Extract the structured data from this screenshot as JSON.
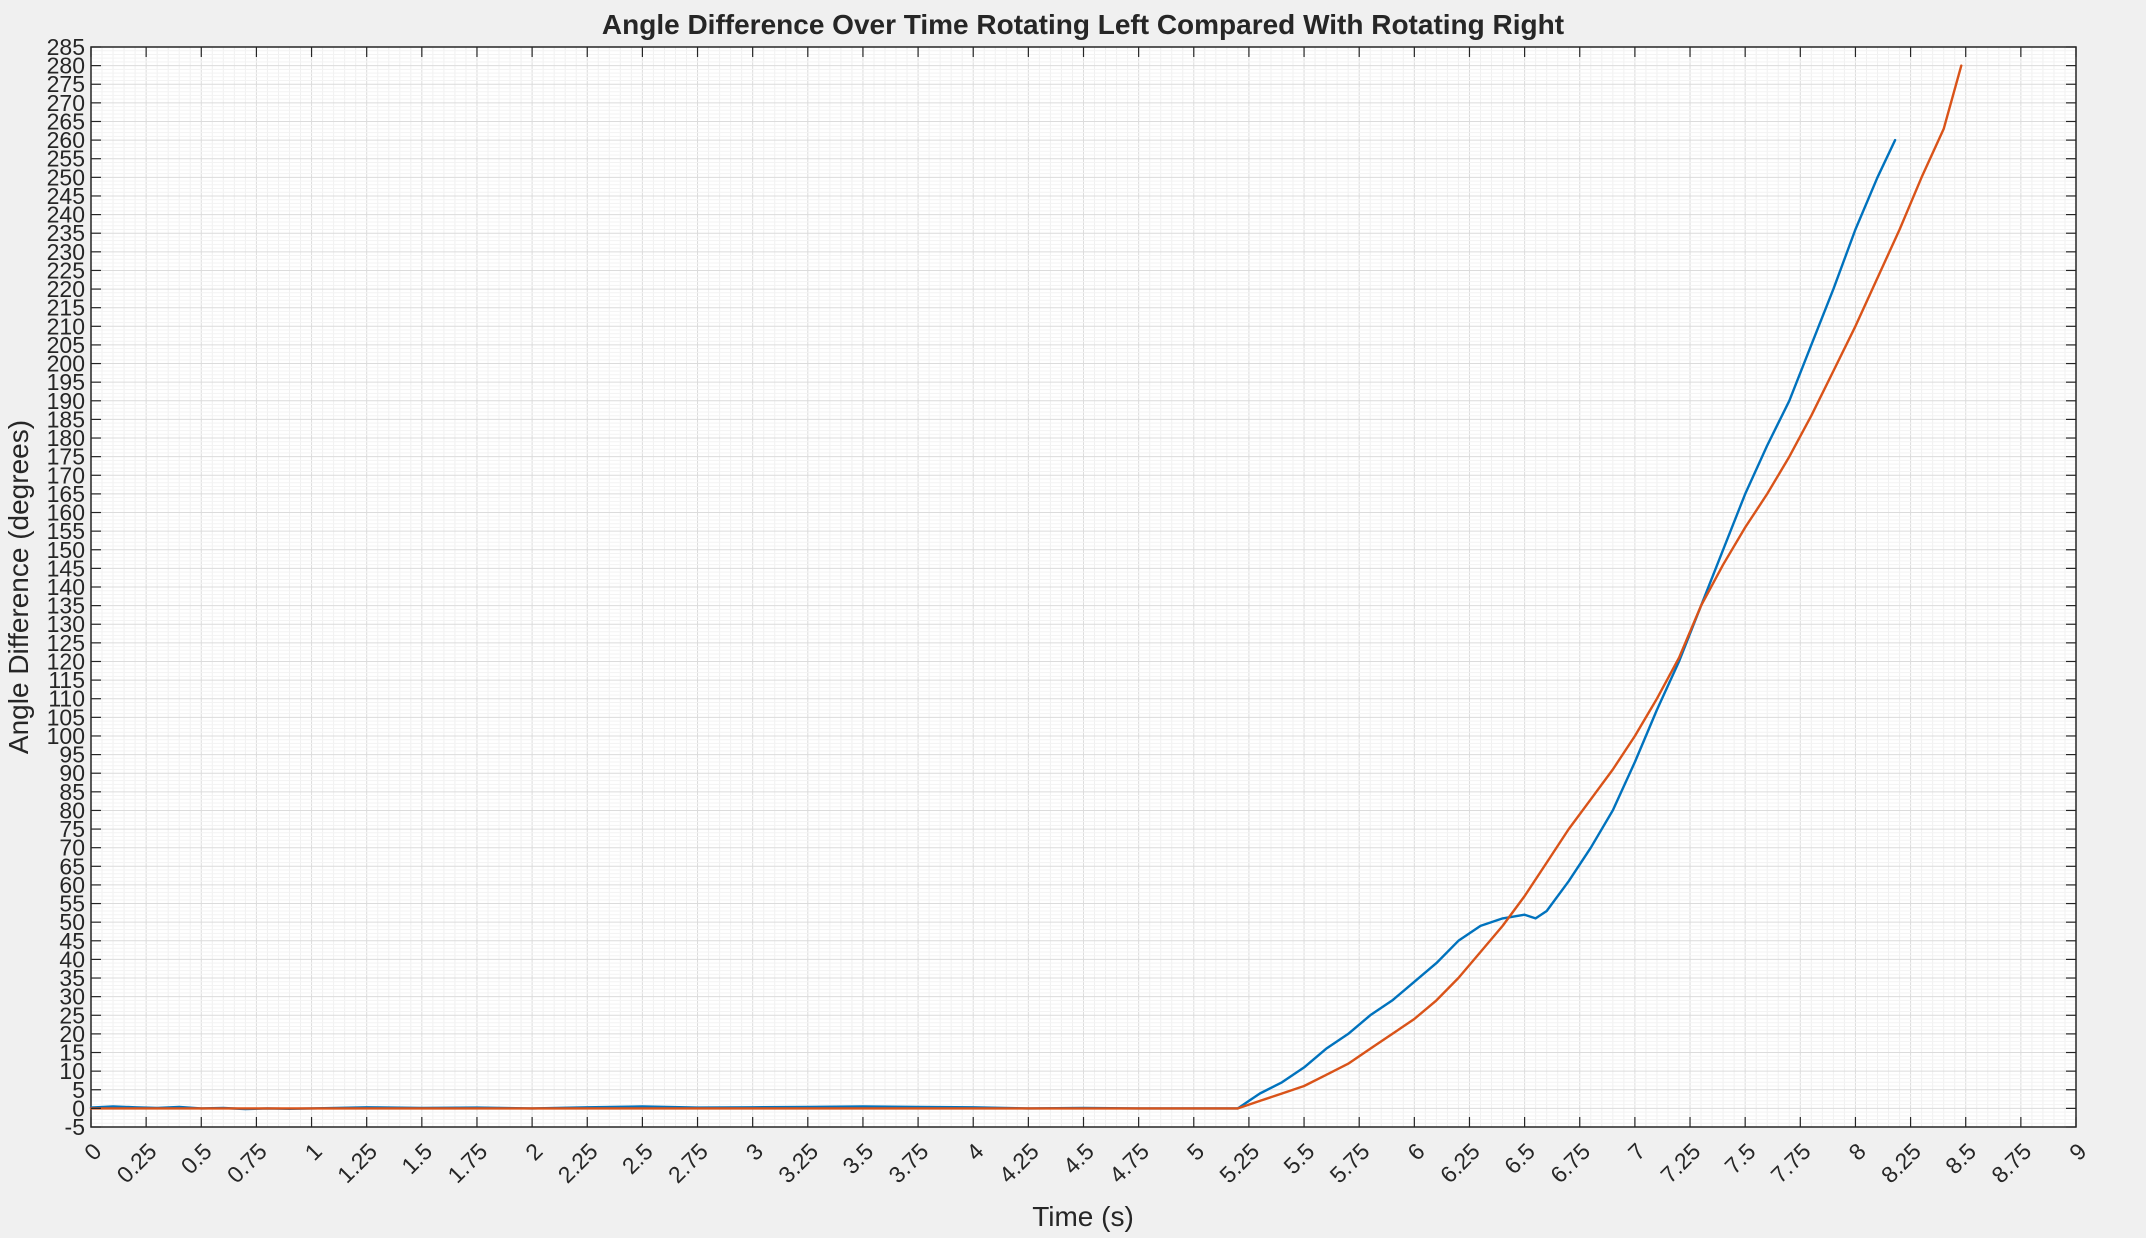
{
  "chart_data": {
    "type": "line",
    "title": "Angle Difference Over Time Rotating Left Compared With Rotating Right",
    "xlabel": "Time (s)",
    "ylabel": "Angle Difference (degrees)",
    "xlim": [
      0,
      9
    ],
    "ylim": [
      -5,
      285
    ],
    "x_ticks": [
      "0",
      "0.25",
      "0.5",
      "0.75",
      "1",
      "1.25",
      "1.5",
      "1.75",
      "2",
      "2.25",
      "2.5",
      "2.75",
      "3",
      "3.25",
      "3.5",
      "3.75",
      "4",
      "4.25",
      "4.5",
      "4.75",
      "5",
      "5.25",
      "5.5",
      "5.75",
      "6",
      "6.25",
      "6.5",
      "6.75",
      "7",
      "7.25",
      "7.5",
      "7.75",
      "8",
      "8.25",
      "8.5",
      "8.75",
      "9"
    ],
    "y_ticks": [
      "-5",
      "0",
      "5",
      "10",
      "15",
      "20",
      "25",
      "30",
      "35",
      "40",
      "45",
      "50",
      "55",
      "60",
      "65",
      "70",
      "75",
      "80",
      "85",
      "90",
      "95",
      "100",
      "105",
      "110",
      "115",
      "120",
      "125",
      "130",
      "135",
      "140",
      "145",
      "150",
      "155",
      "160",
      "165",
      "170",
      "175",
      "180",
      "185",
      "190",
      "195",
      "200",
      "205",
      "210",
      "215",
      "220",
      "225",
      "230",
      "235",
      "240",
      "245",
      "250",
      "255",
      "260",
      "265",
      "270",
      "275",
      "280",
      "285"
    ],
    "grid": true,
    "minor_grid": true,
    "colors": {
      "series1": "#0072BD",
      "series2": "#D95319",
      "grid": "#dcdcdc",
      "background": "#ffffff",
      "figure": "#f0f0f0"
    },
    "series": [
      {
        "x": [
          0,
          0.1,
          0.2,
          0.3,
          0.4,
          0.5,
          0.6,
          0.7,
          0.8,
          0.9,
          1.0,
          1.25,
          1.5,
          1.75,
          2.0,
          2.25,
          2.5,
          2.75,
          3.0,
          3.25,
          3.5,
          3.75,
          4.0,
          4.25,
          4.5,
          4.75,
          5.0,
          5.2,
          5.25,
          5.3,
          5.4,
          5.5,
          5.6,
          5.7,
          5.8,
          5.9,
          6.0,
          6.1,
          6.2,
          6.3,
          6.4,
          6.5,
          6.55,
          6.6,
          6.7,
          6.8,
          6.9,
          7.0,
          7.1,
          7.2,
          7.3,
          7.4,
          7.5,
          7.6,
          7.7,
          7.8,
          7.9,
          8.0,
          8.1,
          8.18
        ],
        "y": [
          0.2,
          0.5,
          0.3,
          0.1,
          0.4,
          0,
          0.1,
          -0.2,
          0,
          -0.1,
          0,
          0.3,
          0.1,
          0.2,
          0,
          0.3,
          0.5,
          0.2,
          0.3,
          0.4,
          0.5,
          0.4,
          0.3,
          0,
          0.1,
          0,
          0,
          0,
          2,
          4,
          7,
          11,
          16,
          20,
          25,
          29,
          34,
          39,
          45,
          49,
          51,
          52,
          51,
          53,
          61,
          70,
          80,
          93,
          107,
          120,
          135,
          150,
          165,
          178,
          190,
          205,
          220,
          236,
          250,
          260
        ]
      },
      {
        "x": [
          0,
          0.25,
          0.5,
          0.75,
          1.0,
          1.25,
          1.5,
          1.75,
          2.0,
          2.25,
          2.5,
          2.75,
          3.0,
          3.25,
          3.5,
          3.75,
          4.0,
          4.25,
          4.5,
          4.75,
          5.0,
          5.2,
          5.3,
          5.4,
          5.5,
          5.6,
          5.7,
          5.8,
          5.9,
          6.0,
          6.1,
          6.2,
          6.3,
          6.4,
          6.5,
          6.6,
          6.7,
          6.8,
          6.9,
          7.0,
          7.1,
          7.2,
          7.3,
          7.4,
          7.5,
          7.6,
          7.7,
          7.8,
          7.9,
          8.0,
          8.1,
          8.2,
          8.3,
          8.4,
          8.48
        ],
        "y": [
          0,
          0,
          0,
          0,
          0,
          0,
          0,
          0,
          0,
          0,
          0,
          0,
          0,
          0,
          0,
          0,
          0,
          0,
          0,
          0,
          0,
          0,
          2,
          4,
          6,
          9,
          12,
          16,
          20,
          24,
          29,
          35,
          42,
          49,
          57,
          66,
          75,
          83,
          91,
          100,
          110,
          121,
          135,
          146,
          156,
          165,
          175,
          186,
          198,
          210,
          223,
          236,
          250,
          263,
          280
        ]
      }
    ]
  }
}
